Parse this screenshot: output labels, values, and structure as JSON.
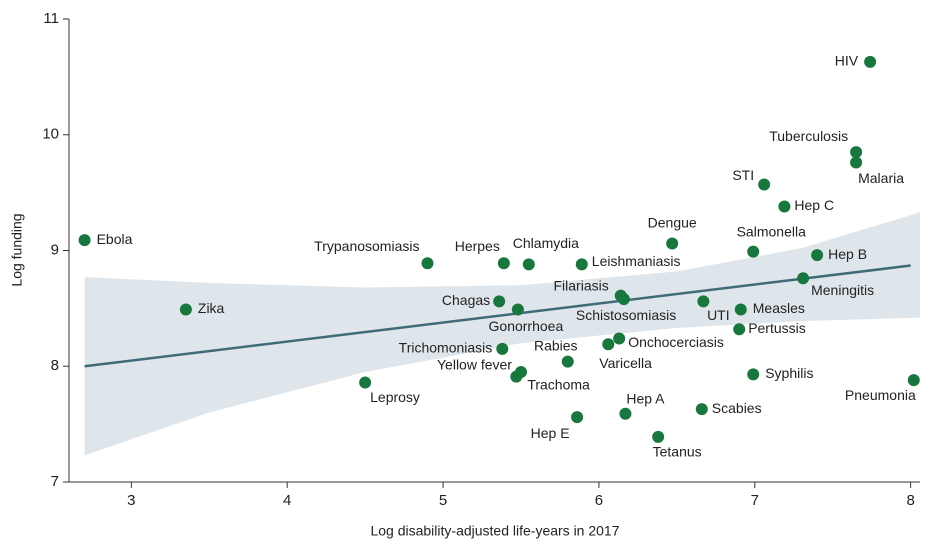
{
  "chart_data": {
    "type": "scatter",
    "x_label": "Log disability-adjusted life-years in 2017",
    "y_label": "Log funding",
    "xlim": [
      2.6,
      8.06
    ],
    "ylim": [
      7,
      11
    ],
    "xticks": [
      3,
      4,
      5,
      6,
      7,
      8
    ],
    "yticks": [
      7,
      8,
      9,
      10,
      11
    ],
    "color": "#17773c",
    "fit_color": "#3f6b78",
    "band_color": "#dfe6eb",
    "labels": [
      "Ebola",
      "Zika",
      "Leprosy",
      "Trypanosomiasis",
      "Herpes",
      "Chlamydia",
      "Leishmaniasis",
      "Dengue",
      "Salmonella",
      "Hep B",
      "Meningitis",
      "Hep C",
      "STI",
      "Tuberculosis",
      "Malaria",
      "HIV",
      "Chagas",
      "Gonorrhoea",
      "Filariasis",
      "Schistosomiasis",
      "UTI",
      "Measles",
      "Pertussis",
      "Trichomoniasis",
      "Rabies",
      "Onchocerciasis",
      "Varicella",
      "Yellow fever",
      "Trachoma",
      "Syphilis",
      "Pneumonia",
      "Scabies",
      "Hep A",
      "Hep E",
      "Tetanus"
    ],
    "x": [
      2.7,
      3.35,
      4.5,
      4.9,
      5.39,
      5.55,
      5.89,
      6.47,
      6.99,
      7.4,
      7.31,
      7.19,
      7.06,
      7.65,
      7.65,
      7.74,
      5.36,
      5.48,
      6.14,
      6.16,
      6.67,
      6.91,
      6.9,
      5.38,
      5.8,
      6.13,
      6.06,
      5.5,
      5.47,
      6.99,
      8.02,
      6.66,
      6.17,
      5.86,
      6.38
    ],
    "y": [
      9.09,
      8.49,
      7.86,
      8.89,
      8.89,
      8.88,
      8.88,
      9.06,
      8.99,
      8.96,
      8.76,
      9.38,
      9.57,
      9.85,
      9.76,
      10.63,
      8.56,
      8.49,
      8.61,
      8.58,
      8.56,
      8.49,
      8.32,
      8.15,
      8.04,
      8.24,
      8.19,
      7.95,
      7.91,
      7.93,
      7.88,
      7.63,
      7.59,
      7.56,
      7.39
    ],
    "fit": {
      "x": [
        2.7,
        8.0
      ],
      "y": [
        8.0,
        8.87
      ]
    },
    "band": {
      "x": [
        2.7,
        3.5,
        4.5,
        5.5,
        6.5,
        7.3,
        8.06
      ],
      "upper": [
        8.77,
        8.72,
        8.68,
        8.7,
        8.82,
        9.02,
        9.33
      ],
      "lower": [
        7.23,
        7.6,
        7.95,
        8.2,
        8.33,
        8.39,
        8.42
      ]
    }
  }
}
